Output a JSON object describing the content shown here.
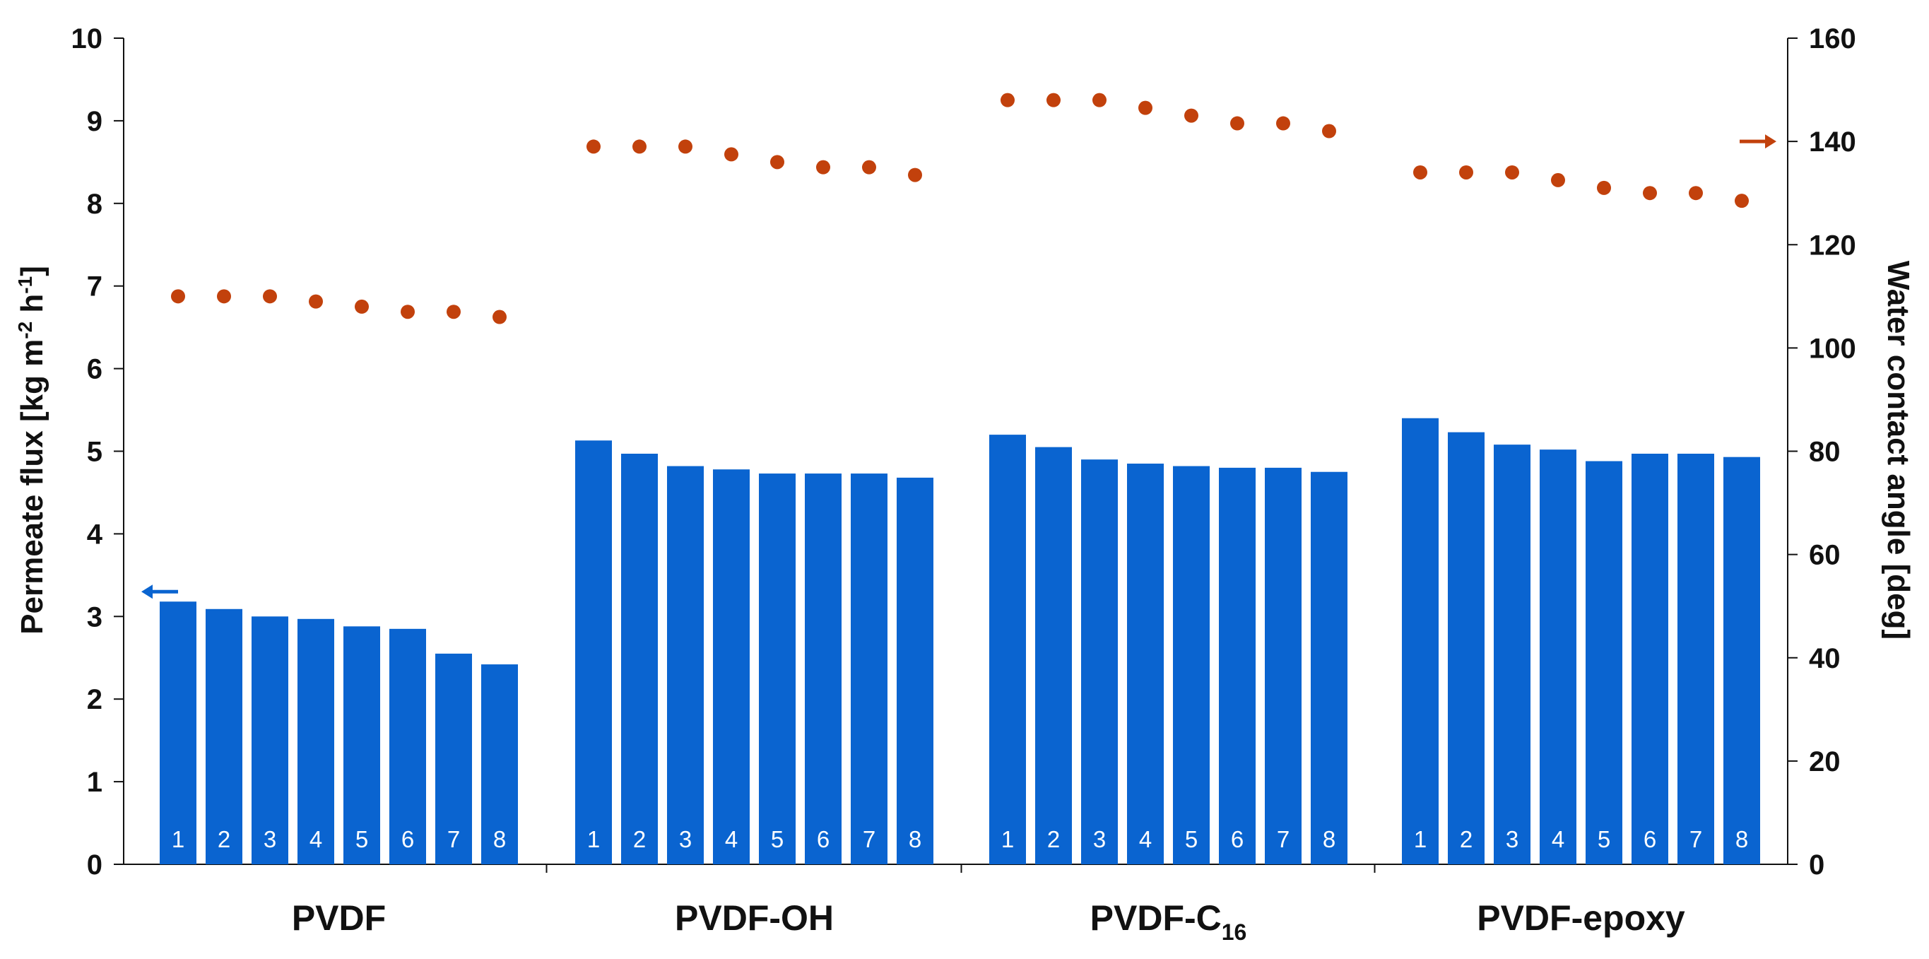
{
  "chart_data": {
    "type": "bar",
    "groups": [
      "PVDF",
      "PVDF-OH",
      "PVDF-C",
      "PVDF-epoxy"
    ],
    "group_subscripts": [
      "",
      "",
      "16",
      ""
    ],
    "bar_labels": [
      "1",
      "2",
      "3",
      "4",
      "5",
      "6",
      "7",
      "8"
    ],
    "series": [
      {
        "axis": "left",
        "kind": "bar",
        "values": [
          [
            3.18,
            3.09,
            3.0,
            2.97,
            2.88,
            2.85,
            2.55,
            2.42
          ],
          [
            5.13,
            4.97,
            4.82,
            4.78,
            4.73,
            4.73,
            4.73,
            4.68
          ],
          [
            5.2,
            5.05,
            4.9,
            4.85,
            4.82,
            4.8,
            4.8,
            4.75
          ],
          [
            5.4,
            5.23,
            5.08,
            5.02,
            4.88,
            4.97,
            4.97,
            4.93
          ]
        ]
      },
      {
        "axis": "right",
        "kind": "scatter",
        "values": [
          [
            110,
            110,
            110,
            109,
            108,
            107,
            107,
            106
          ],
          [
            139,
            139,
            139,
            137.5,
            136,
            135,
            135,
            133.5
          ],
          [
            148,
            148,
            148,
            146.5,
            145,
            143.5,
            143.5,
            142
          ],
          [
            134,
            134,
            134,
            132.5,
            131,
            130,
            130,
            128.5
          ]
        ]
      }
    ],
    "ylabel_left": "Permeate flux [kg m-2 h-1]",
    "ylabel_left_parts": {
      "main": "Permeate flux [kg m",
      "exp1": "-2",
      "mid": " h",
      "exp2": "-1",
      "end": "]"
    },
    "ylabel_right": "Water contact angle [deg]",
    "yticks_left": [
      "0",
      "1",
      "2",
      "3",
      "4",
      "5",
      "6",
      "7",
      "8",
      "9",
      "10"
    ],
    "yticks_right": [
      "0",
      "20",
      "40",
      "60",
      "80",
      "100",
      "120",
      "140",
      "160"
    ],
    "ylim_left": [
      0,
      10
    ],
    "ylim_right": [
      0,
      160
    ],
    "left_arrow_value": 3.3,
    "right_arrow_value": 140,
    "colors": {
      "bar": "#0a64d0",
      "dot": "#c2410c",
      "axis": "#111111"
    },
    "grid": false
  }
}
